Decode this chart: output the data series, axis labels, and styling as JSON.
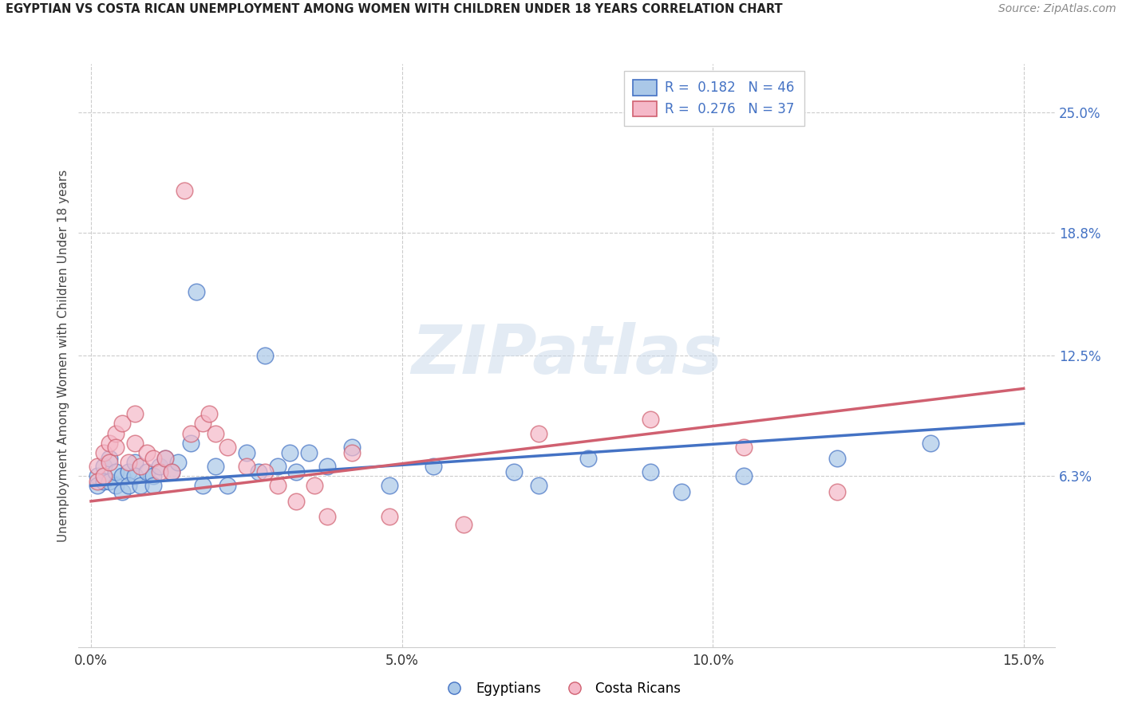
{
  "title": "EGYPTIAN VS COSTA RICAN UNEMPLOYMENT AMONG WOMEN WITH CHILDREN UNDER 18 YEARS CORRELATION CHART",
  "source": "Source: ZipAtlas.com",
  "ylabel": "Unemployment Among Women with Children Under 18 years",
  "xlim_min": -0.002,
  "xlim_max": 0.155,
  "ylim_min": -0.025,
  "ylim_max": 0.275,
  "xtick_vals": [
    0.0,
    0.05,
    0.1,
    0.15
  ],
  "xticklabels": [
    "0.0%",
    "5.0%",
    "10.0%",
    "15.0%"
  ],
  "ytick_right_vals": [
    0.063,
    0.125,
    0.188,
    0.25
  ],
  "ytick_right_labels": [
    "6.3%",
    "12.5%",
    "18.8%",
    "25.0%"
  ],
  "watermark": "ZIPatlas",
  "R_egyptians": 0.182,
  "N_egyptians": 46,
  "R_costa": 0.276,
  "N_costa": 37,
  "color_egyptians_fill": "#aac8e8",
  "color_egyptians_edge": "#4472c4",
  "color_costa_fill": "#f5b8c8",
  "color_costa_edge": "#d06070",
  "line_color_egyptians": "#4472c4",
  "line_color_costa": "#d06070",
  "bg_color": "#ffffff",
  "grid_color": "#cccccc",
  "title_color": "#222222",
  "source_color": "#888888",
  "egyptians_x": [
    0.001,
    0.001,
    0.002,
    0.002,
    0.003,
    0.003,
    0.004,
    0.004,
    0.005,
    0.005,
    0.006,
    0.006,
    0.007,
    0.007,
    0.008,
    0.009,
    0.01,
    0.01,
    0.011,
    0.012,
    0.013,
    0.014,
    0.016,
    0.017,
    0.018,
    0.02,
    0.022,
    0.025,
    0.027,
    0.03,
    0.032,
    0.033,
    0.035,
    0.038,
    0.042,
    0.048,
    0.028,
    0.055,
    0.068,
    0.072,
    0.08,
    0.09,
    0.095,
    0.105,
    0.12,
    0.135
  ],
  "egyptians_y": [
    0.063,
    0.058,
    0.068,
    0.06,
    0.06,
    0.072,
    0.058,
    0.065,
    0.063,
    0.055,
    0.065,
    0.058,
    0.07,
    0.063,
    0.058,
    0.065,
    0.063,
    0.058,
    0.068,
    0.072,
    0.065,
    0.07,
    0.08,
    0.158,
    0.058,
    0.068,
    0.058,
    0.075,
    0.065,
    0.068,
    0.075,
    0.065,
    0.075,
    0.068,
    0.078,
    0.058,
    0.125,
    0.068,
    0.065,
    0.058,
    0.072,
    0.065,
    0.055,
    0.063,
    0.072,
    0.08
  ],
  "costa_x": [
    0.001,
    0.001,
    0.002,
    0.002,
    0.003,
    0.003,
    0.004,
    0.004,
    0.005,
    0.006,
    0.007,
    0.007,
    0.008,
    0.009,
    0.01,
    0.011,
    0.012,
    0.013,
    0.015,
    0.016,
    0.018,
    0.019,
    0.02,
    0.022,
    0.025,
    0.028,
    0.03,
    0.033,
    0.036,
    0.038,
    0.042,
    0.048,
    0.06,
    0.072,
    0.09,
    0.105,
    0.12
  ],
  "costa_y": [
    0.068,
    0.06,
    0.075,
    0.063,
    0.08,
    0.07,
    0.085,
    0.078,
    0.09,
    0.07,
    0.095,
    0.08,
    0.068,
    0.075,
    0.072,
    0.065,
    0.072,
    0.065,
    0.21,
    0.085,
    0.09,
    0.095,
    0.085,
    0.078,
    0.068,
    0.065,
    0.058,
    0.05,
    0.058,
    0.042,
    0.075,
    0.042,
    0.038,
    0.085,
    0.092,
    0.078,
    0.055
  ],
  "egy_line_x0": 0.0,
  "egy_line_x1": 0.15,
  "egy_line_y0": 0.058,
  "egy_line_y1": 0.09,
  "cr_line_x0": 0.0,
  "cr_line_x1": 0.15,
  "cr_line_y0": 0.05,
  "cr_line_y1": 0.108
}
